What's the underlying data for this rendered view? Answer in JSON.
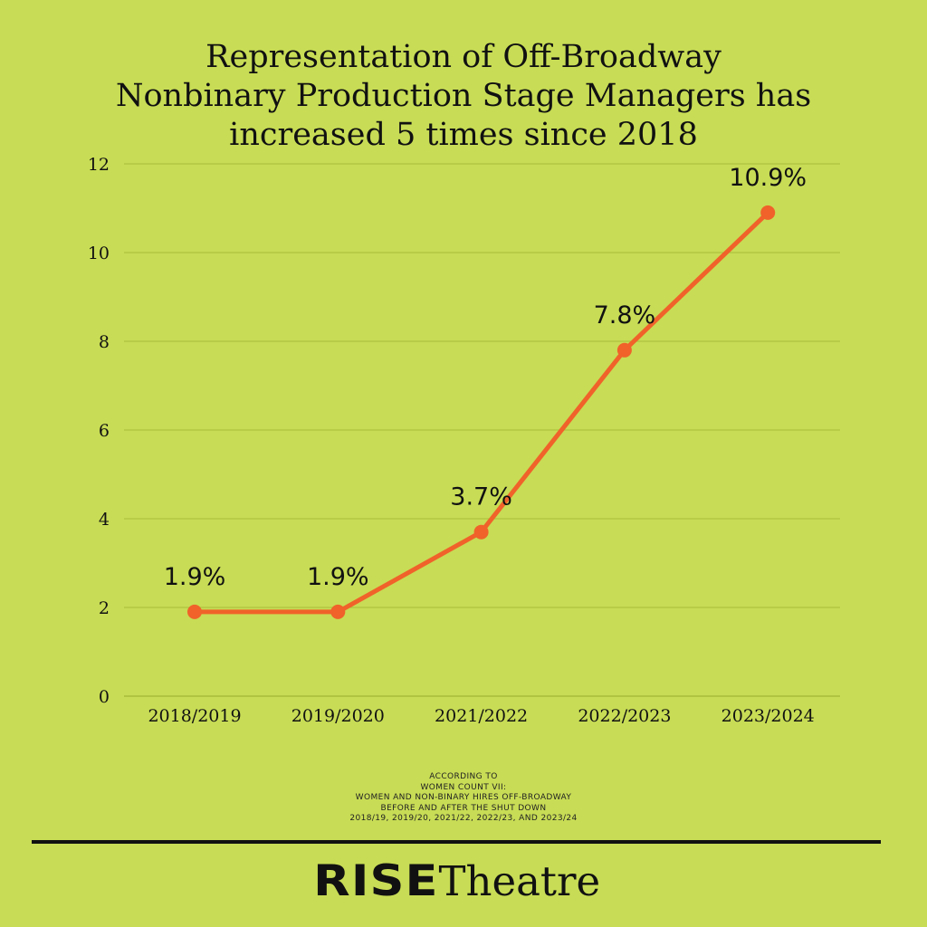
{
  "title": {
    "lines": [
      "Representation of  Off-Broadway",
      "Nonbinary Production Stage Managers has",
      "increased 5 times since 2018"
    ]
  },
  "chart_data": {
    "type": "line",
    "categories": [
      "2018/2019",
      "2019/2020",
      "2021/2022",
      "2022/2023",
      "2023/2024"
    ],
    "values": [
      1.9,
      1.9,
      3.7,
      7.8,
      10.9
    ],
    "data_labels": [
      "1.9%",
      "1.9%",
      "3.7%",
      "7.8%",
      "10.9%"
    ],
    "yticks": [
      0,
      2,
      4,
      6,
      8,
      10,
      12
    ],
    "ylim": [
      0,
      12
    ],
    "grid": true,
    "legend": "none",
    "xlabel": "",
    "ylabel": ""
  },
  "source": {
    "lines": [
      "ACCORDING TO",
      "WOMEN COUNT VII:",
      "WOMEN AND NON-BINARY HIRES OFF-BROADWAY",
      "BEFORE AND AFTER THE SHUT DOWN",
      "2018/19, 2019/20, 2021/22, 2022/23, AND 2023/24"
    ]
  },
  "logo": {
    "bold": "RISE",
    "light": "Theatre"
  },
  "colors": {
    "background": "#c8dc55",
    "line": "#f0622a",
    "grid": "#a8bb3c",
    "text": "#111111"
  }
}
